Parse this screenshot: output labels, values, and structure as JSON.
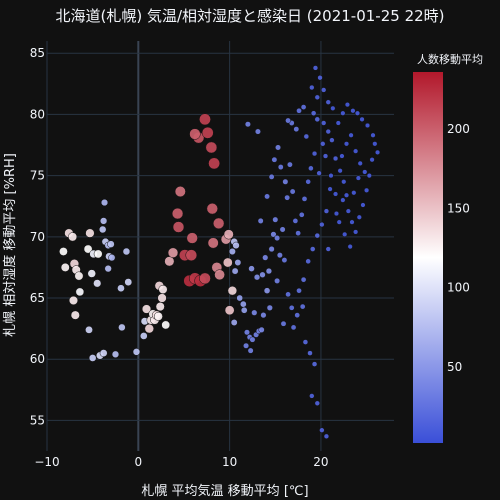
{
  "chart_data": {
    "type": "scatter",
    "title": "北海道(札幌) 気温/相対湿度と感染日 (2021-01-25 22時)",
    "xlabel": "札幌 平均気温 移動平均 [℃]",
    "ylabel": "札幌 相対湿度 移動平均 [%RH]",
    "xlim": [
      -10,
      28
    ],
    "ylim": [
      52.5,
      86
    ],
    "xticks": [
      -10,
      0,
      10,
      20
    ],
    "yticks": [
      55,
      60,
      65,
      70,
      75,
      80,
      85
    ],
    "colorbar": {
      "title": "人数移動平均",
      "range": [
        2,
        236
      ],
      "ticks": [
        50,
        100,
        150,
        200
      ],
      "colors": [
        "#3a4fd8",
        "#ffffff",
        "#b2182b"
      ]
    },
    "grid": true,
    "background": "#111111",
    "points": [
      [
        -8.2,
        68.8,
        120
      ],
      [
        -7.6,
        70.3,
        135
      ],
      [
        -7.2,
        70.0,
        130
      ],
      [
        -8.0,
        67.5,
        125
      ],
      [
        -7.0,
        67.8,
        140
      ],
      [
        -6.8,
        67.3,
        130
      ],
      [
        -6.5,
        66.8,
        125
      ],
      [
        -7.1,
        64.8,
        130
      ],
      [
        -6.9,
        63.6,
        130
      ],
      [
        -6.4,
        65.5,
        115
      ],
      [
        -5.5,
        69.0,
        120
      ],
      [
        -5.3,
        70.3,
        135
      ],
      [
        -4.9,
        68.6,
        110
      ],
      [
        -4.4,
        68.6,
        120
      ],
      [
        -5.1,
        67.0,
        110
      ],
      [
        -5.4,
        62.4,
        90
      ],
      [
        -5.0,
        60.1,
        85
      ],
      [
        -4.5,
        66.2,
        100
      ],
      [
        -4.2,
        60.3,
        95
      ],
      [
        -3.8,
        60.5,
        90
      ],
      [
        -3.6,
        69.6,
        85
      ],
      [
        -3.3,
        69.3,
        75
      ],
      [
        -3.0,
        69.4,
        80
      ],
      [
        -3.2,
        68.4,
        90
      ],
      [
        -3.9,
        70.6,
        80
      ],
      [
        -3.8,
        71.3,
        75
      ],
      [
        -3.7,
        72.8,
        70
      ],
      [
        -2.9,
        68.3,
        70
      ],
      [
        -3.3,
        67.4,
        75
      ],
      [
        -2.5,
        60.4,
        75
      ],
      [
        -1.8,
        62.6,
        80
      ],
      [
        -1.9,
        65.8,
        85
      ],
      [
        -1.3,
        68.8,
        80
      ],
      [
        -1.1,
        66.3,
        90
      ],
      [
        -0.2,
        60.6,
        80
      ],
      [
        0.6,
        61.9,
        85
      ],
      [
        0.7,
        63.1,
        95
      ],
      [
        0.9,
        64.1,
        135
      ],
      [
        1.2,
        62.5,
        140
      ],
      [
        1.4,
        63.2,
        130
      ],
      [
        1.6,
        63.7,
        125
      ],
      [
        1.8,
        63.2,
        130
      ],
      [
        2.0,
        63.6,
        135
      ],
      [
        2.2,
        63.5,
        125
      ],
      [
        2.4,
        64.3,
        130
      ],
      [
        2.6,
        65.0,
        135
      ],
      [
        2.3,
        66.0,
        140
      ],
      [
        2.7,
        65.7,
        130
      ],
      [
        3.0,
        62.8,
        120
      ],
      [
        3.4,
        68.0,
        160
      ],
      [
        3.8,
        68.7,
        170
      ],
      [
        4.3,
        71.9,
        200
      ],
      [
        4.6,
        73.7,
        190
      ],
      [
        4.4,
        70.8,
        205
      ],
      [
        5.1,
        68.5,
        215
      ],
      [
        5.8,
        68.5,
        210
      ],
      [
        5.6,
        66.4,
        225
      ],
      [
        6.2,
        66.6,
        220
      ],
      [
        6.8,
        66.4,
        225
      ],
      [
        7.3,
        66.6,
        210
      ],
      [
        5.9,
        69.9,
        200
      ],
      [
        6.6,
        78.1,
        205
      ],
      [
        6.2,
        78.4,
        200
      ],
      [
        7.3,
        79.6,
        215
      ],
      [
        7.6,
        78.5,
        215
      ],
      [
        8.0,
        77.3,
        210
      ],
      [
        8.3,
        76.0,
        215
      ],
      [
        8.1,
        72.3,
        200
      ],
      [
        8.8,
        71.1,
        200
      ],
      [
        8.6,
        67.5,
        180
      ],
      [
        8.9,
        66.9,
        180
      ],
      [
        8.2,
        69.5,
        190
      ],
      [
        9.6,
        69.8,
        170
      ],
      [
        9.9,
        70.2,
        160
      ],
      [
        9.8,
        67.9,
        150
      ],
      [
        10.0,
        64.0,
        150
      ],
      [
        10.3,
        65.6,
        140
      ],
      [
        10.5,
        69.6,
        80
      ],
      [
        10.7,
        69.3,
        75
      ],
      [
        10.3,
        68.8,
        65
      ],
      [
        10.9,
        67.9,
        60
      ],
      [
        10.6,
        67.2,
        60
      ],
      [
        11.1,
        65.0,
        55
      ],
      [
        11.5,
        64.5,
        55
      ],
      [
        11.6,
        64.0,
        55
      ],
      [
        11.9,
        62.2,
        35
      ],
      [
        12.2,
        61.8,
        35
      ],
      [
        12.5,
        61.6,
        35
      ],
      [
        12.9,
        62.0,
        35
      ],
      [
        12.7,
        63.8,
        40
      ],
      [
        13.2,
        62.3,
        35
      ],
      [
        13.5,
        62.4,
        40
      ],
      [
        12.4,
        67.4,
        50
      ],
      [
        13.0,
        66.7,
        45
      ],
      [
        13.6,
        66.9,
        45
      ],
      [
        14.1,
        65.6,
        50
      ],
      [
        14.3,
        67.2,
        45
      ],
      [
        13.9,
        68.3,
        40
      ],
      [
        14.6,
        69.0,
        40
      ],
      [
        14.8,
        70.2,
        40
      ],
      [
        15.2,
        69.9,
        35
      ],
      [
        15.5,
        68.5,
        35
      ],
      [
        15.0,
        71.4,
        35
      ],
      [
        15.8,
        70.6,
        35
      ],
      [
        16.3,
        73.2,
        30
      ],
      [
        16.1,
        74.5,
        35
      ],
      [
        15.6,
        75.7,
        30
      ],
      [
        14.9,
        76.3,
        30
      ],
      [
        15.3,
        77.3,
        35
      ],
      [
        16.6,
        75.9,
        30
      ],
      [
        16.9,
        73.7,
        30
      ],
      [
        17.2,
        71.3,
        25
      ],
      [
        17.5,
        70.3,
        25
      ],
      [
        17.9,
        71.8,
        25
      ],
      [
        18.2,
        73.1,
        25
      ],
      [
        18.6,
        74.5,
        20
      ],
      [
        18.9,
        75.6,
        20
      ],
      [
        19.3,
        76.8,
        15
      ],
      [
        18.4,
        78.2,
        20
      ],
      [
        17.3,
        78.8,
        30
      ],
      [
        16.8,
        79.3,
        30
      ],
      [
        16.4,
        79.5,
        30
      ],
      [
        17.6,
        80.3,
        25
      ],
      [
        18.1,
        80.6,
        25
      ],
      [
        19.2,
        80.1,
        20
      ],
      [
        19.6,
        79.6,
        20
      ],
      [
        20.3,
        79.3,
        15
      ],
      [
        20.8,
        78.6,
        15
      ],
      [
        21.2,
        77.9,
        15
      ],
      [
        21.6,
        76.4,
        15
      ],
      [
        22.1,
        75.4,
        10
      ],
      [
        22.5,
        74.5,
        10
      ],
      [
        22.8,
        73.4,
        10
      ],
      [
        23.0,
        72.1,
        10
      ],
      [
        23.4,
        71.2,
        10
      ],
      [
        23.8,
        70.4,
        10
      ],
      [
        24.2,
        71.6,
        10
      ],
      [
        24.6,
        72.6,
        10
      ],
      [
        25.0,
        73.8,
        10
      ],
      [
        25.3,
        75.0,
        10
      ],
      [
        25.6,
        76.3,
        10
      ],
      [
        25.9,
        77.6,
        10
      ],
      [
        26.2,
        76.9,
        10
      ],
      [
        25.7,
        78.3,
        10
      ],
      [
        25.1,
        79.1,
        10
      ],
      [
        24.5,
        79.6,
        10
      ],
      [
        24.0,
        80.1,
        10
      ],
      [
        23.5,
        80.3,
        10
      ],
      [
        22.9,
        80.8,
        10
      ],
      [
        22.4,
        80.1,
        10
      ],
      [
        21.9,
        79.3,
        10
      ],
      [
        21.3,
        80.5,
        10
      ],
      [
        20.8,
        81.0,
        15
      ],
      [
        20.3,
        82.0,
        15
      ],
      [
        19.9,
        83.0,
        15
      ],
      [
        19.4,
        83.8,
        15
      ],
      [
        19.0,
        82.2,
        15
      ],
      [
        19.6,
        81.4,
        15
      ],
      [
        21.1,
        75.0,
        10
      ],
      [
        21.6,
        73.5,
        10
      ],
      [
        20.6,
        72.1,
        15
      ],
      [
        20.1,
        71.0,
        15
      ],
      [
        19.6,
        70.1,
        20
      ],
      [
        19.1,
        69.0,
        20
      ],
      [
        18.6,
        68.0,
        20
      ],
      [
        18.1,
        66.5,
        25
      ],
      [
        17.6,
        65.6,
        25
      ],
      [
        16.8,
        64.2,
        25
      ],
      [
        16.4,
        65.3,
        25
      ],
      [
        18.3,
        61.4,
        20
      ],
      [
        18.8,
        60.5,
        20
      ],
      [
        19.3,
        59.6,
        20
      ],
      [
        19.0,
        57.0,
        15
      ],
      [
        19.6,
        56.4,
        15
      ],
      [
        20.1,
        54.2,
        15
      ],
      [
        20.6,
        53.7,
        15
      ],
      [
        22.0,
        71.2,
        10
      ],
      [
        22.6,
        70.2,
        10
      ],
      [
        23.2,
        69.2,
        10
      ],
      [
        22.3,
        76.6,
        10
      ],
      [
        22.8,
        77.6,
        10
      ],
      [
        23.3,
        78.3,
        10
      ],
      [
        23.8,
        77.0,
        10
      ],
      [
        24.3,
        76.0,
        10
      ],
      [
        24.8,
        75.3,
        10
      ],
      [
        21.0,
        73.9,
        10
      ],
      [
        20.5,
        76.6,
        15
      ],
      [
        20.2,
        77.6,
        15
      ],
      [
        19.8,
        75.2,
        15
      ],
      [
        24.1,
        74.8,
        10
      ],
      [
        23.6,
        73.6,
        10
      ],
      [
        22.4,
        73.0,
        10
      ],
      [
        21.7,
        71.9,
        10
      ],
      [
        20.8,
        69.0,
        15
      ],
      [
        12.0,
        79.2,
        35
      ],
      [
        13.1,
        78.6,
        35
      ],
      [
        14.6,
        74.9,
        30
      ],
      [
        14.1,
        73.3,
        30
      ],
      [
        13.4,
        71.3,
        35
      ],
      [
        16.0,
        68.1,
        30
      ],
      [
        15.2,
        66.4,
        35
      ],
      [
        14.4,
        64.2,
        40
      ],
      [
        13.7,
        63.6,
        40
      ],
      [
        12.3,
        60.7,
        35
      ],
      [
        11.8,
        61.1,
        35
      ],
      [
        17.0,
        62.6,
        25
      ],
      [
        17.4,
        63.6,
        25
      ],
      [
        18.0,
        64.3,
        25
      ],
      [
        15.9,
        62.9,
        30
      ],
      [
        10.5,
        63.0,
        60
      ]
    ]
  }
}
